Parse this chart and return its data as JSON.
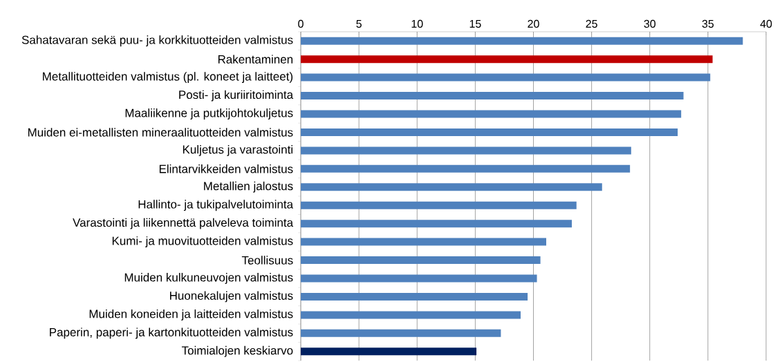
{
  "chart_data": {
    "type": "bar",
    "orientation": "horizontal",
    "categories": [
      "Sahatavaran sekä puu- ja korkkituotteiden valmistus",
      "Rakentaminen",
      "Metallituotteiden valmistus (pl. koneet ja laitteet)",
      "Posti- ja kuriiritoiminta",
      "Maaliikenne ja putkijohtokuljetus",
      "Muiden ei-metallisten mineraalituotteiden valmistus",
      "Kuljetus ja varastointi",
      "Elintarvikkeiden valmistus",
      "Metallien jalostus",
      "Hallinto- ja tukipalvelutoiminta",
      "Varastointi ja liikennettä palveleva toiminta",
      "Kumi- ja muovituotteiden valmistus",
      "Teollisuus",
      "Muiden kulkuneuvojen valmistus",
      "Huonekalujen valmistus",
      "Muiden koneiden ja laitteiden valmistus",
      "Paperin, paperi- ja kartonkituotteiden valmistus",
      "Toimialojen keskiarvo"
    ],
    "values": [
      38.0,
      35.4,
      35.2,
      32.9,
      32.7,
      32.4,
      28.4,
      28.3,
      25.9,
      23.7,
      23.3,
      21.1,
      20.6,
      20.3,
      19.5,
      18.9,
      17.2,
      15.1
    ],
    "colors": [
      "#4f81bd",
      "#c00000",
      "#4f81bd",
      "#4f81bd",
      "#4f81bd",
      "#4f81bd",
      "#4f81bd",
      "#4f81bd",
      "#4f81bd",
      "#4f81bd",
      "#4f81bd",
      "#4f81bd",
      "#4f81bd",
      "#4f81bd",
      "#4f81bd",
      "#4f81bd",
      "#4f81bd",
      "#002060"
    ],
    "xlim": [
      0,
      40
    ],
    "xticks": [
      0,
      5,
      10,
      15,
      20,
      25,
      30,
      35,
      40
    ],
    "grid": "x"
  }
}
